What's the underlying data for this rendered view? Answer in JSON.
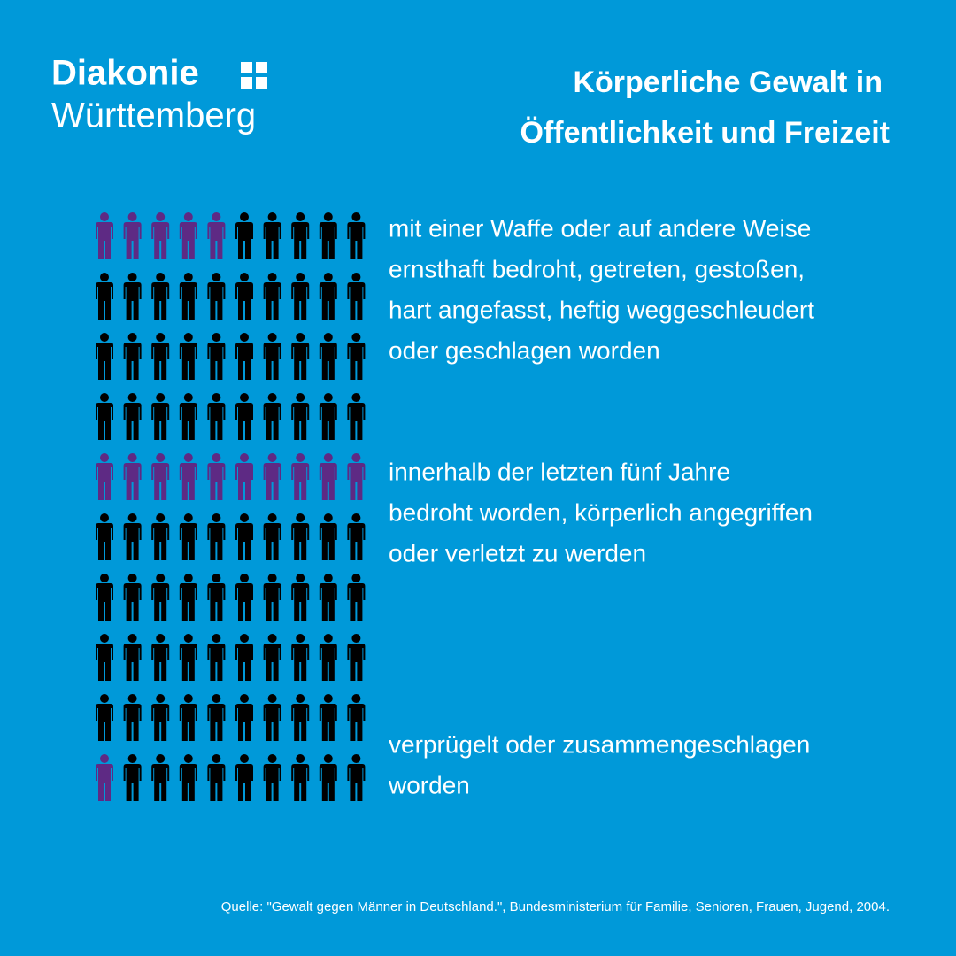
{
  "logo": {
    "name": "Diakonie",
    "region": "Württemberg"
  },
  "title": [
    "Körperliche Gewalt in",
    "Öffentlichkeit und Freizeit"
  ],
  "pictogram": {
    "columns": 10,
    "rows": [
      5,
      0,
      0,
      0,
      10,
      0,
      0,
      0,
      0,
      1
    ],
    "highlight_color": "#5e2a84",
    "base_color": "#000000"
  },
  "statements": [
    {
      "lines": [
        "mit einer Waffe oder auf andere Weise",
        "ernsthaft bedroht, getreten, gestoßen,",
        "hart angefasst, heftig weggeschleudert",
        "oder geschlagen worden"
      ]
    },
    {
      "lines": [
        "innerhalb der letzten fünf Jahre",
        "bedroht worden, körperlich angegriffen",
        "oder verletzt zu werden"
      ]
    },
    {
      "lines": [
        "verprügelt oder zusammengeschlagen",
        "worden"
      ]
    }
  ],
  "source": "Quelle: \"Gewalt gegen Männer in Deutschland.\", Bundesministerium für Familie, Senioren, Frauen, Jugend, 2004."
}
